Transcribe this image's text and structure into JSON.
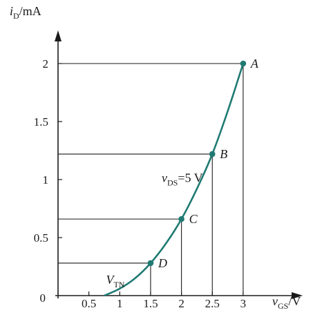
{
  "chart_data": {
    "type": "line",
    "title": "",
    "xlabel": {
      "symbol": "v",
      "subscript": "GS",
      "unit": "/V"
    },
    "ylabel": {
      "symbol": "i",
      "subscript": "D",
      "unit": "/mA"
    },
    "xlim": [
      0,
      3.55
    ],
    "ylim": [
      0,
      2.35
    ],
    "x_ticks": [
      {
        "value": 0.5,
        "label": "0.5"
      },
      {
        "value": 1,
        "label": "1"
      },
      {
        "value": 1.5,
        "label": "1.5"
      },
      {
        "value": 2,
        "label": "2"
      },
      {
        "value": 2.5,
        "label": "2.5"
      },
      {
        "value": 3,
        "label": "3"
      }
    ],
    "y_ticks": [
      {
        "value": 0.5,
        "label": "0.5"
      },
      {
        "value": 1,
        "label": "1"
      },
      {
        "value": 1.5,
        "label": "1.5"
      },
      {
        "value": 2,
        "label": "2"
      }
    ],
    "origin_label": "0",
    "curve": {
      "color": "#1f7a72",
      "x": [
        0.75,
        1.0,
        1.25,
        1.5,
        1.75,
        2.0,
        2.25,
        2.5,
        2.75,
        3.0
      ],
      "y": [
        0,
        0.06,
        0.15,
        0.28,
        0.45,
        0.66,
        0.92,
        1.22,
        1.59,
        2.0
      ]
    },
    "points": [
      {
        "label": "A",
        "x": 3.0,
        "y": 2.0
      },
      {
        "label": "B",
        "x": 2.5,
        "y": 1.22
      },
      {
        "label": "C",
        "x": 2.0,
        "y": 0.66
      },
      {
        "label": "D",
        "x": 1.5,
        "y": 0.28
      }
    ],
    "annotations": {
      "vds": {
        "symbol": "v",
        "subscript": "DS",
        "rest": "=5 V",
        "x": 1.68,
        "y": 0.98
      },
      "vtn": {
        "symbol": "V",
        "subscript": "TN",
        "x": 1.08,
        "y": 0.1,
        "color": "#1f7a72"
      }
    },
    "grid": false,
    "legend": "none"
  }
}
